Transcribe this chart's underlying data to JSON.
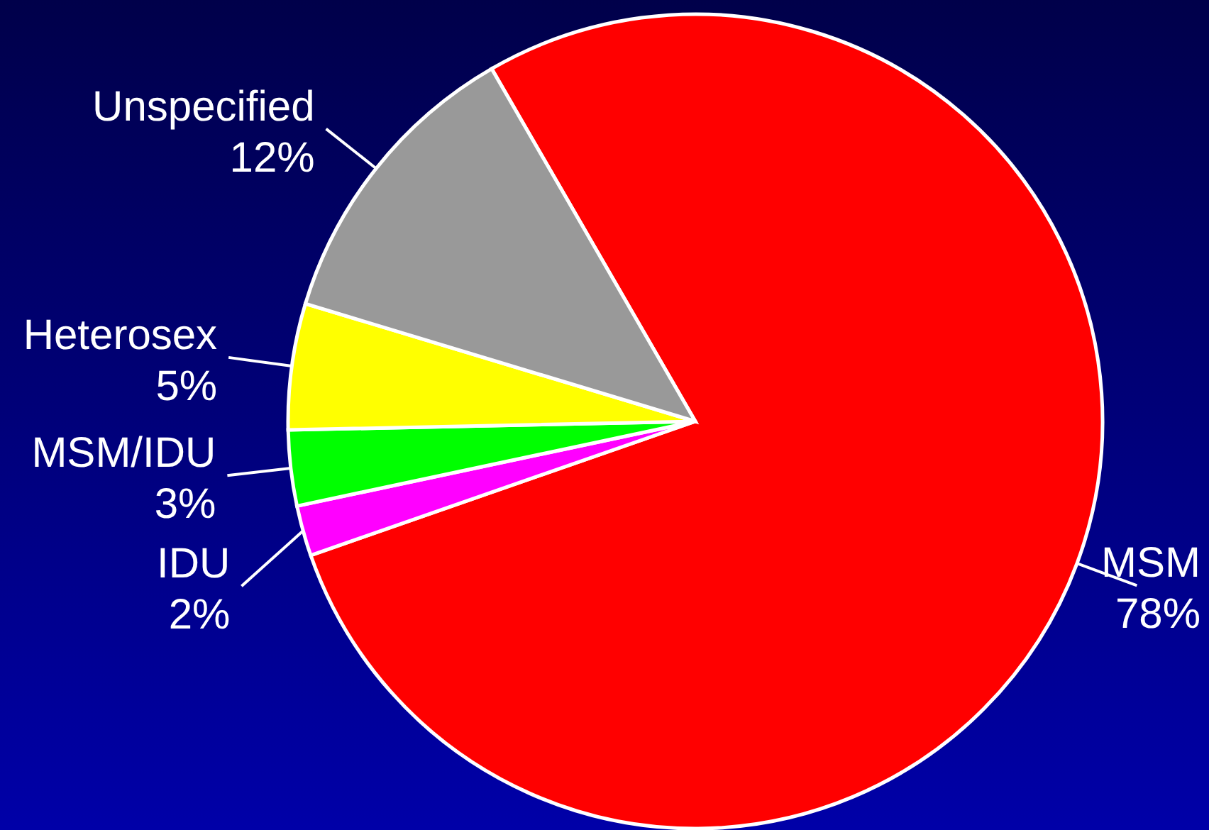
{
  "chart_data": {
    "type": "pie",
    "categories": [
      "MSM",
      "IDU",
      "MSM/IDU",
      "Heterosex",
      "Unspecified"
    ],
    "values": [
      78,
      2,
      3,
      5,
      12
    ],
    "value_labels": [
      "78%",
      "2%",
      "3%",
      "5%",
      "12%"
    ],
    "colors": [
      "#ff0000",
      "#ff00ff",
      "#00ff00",
      "#ffff00",
      "#999999"
    ]
  }
}
